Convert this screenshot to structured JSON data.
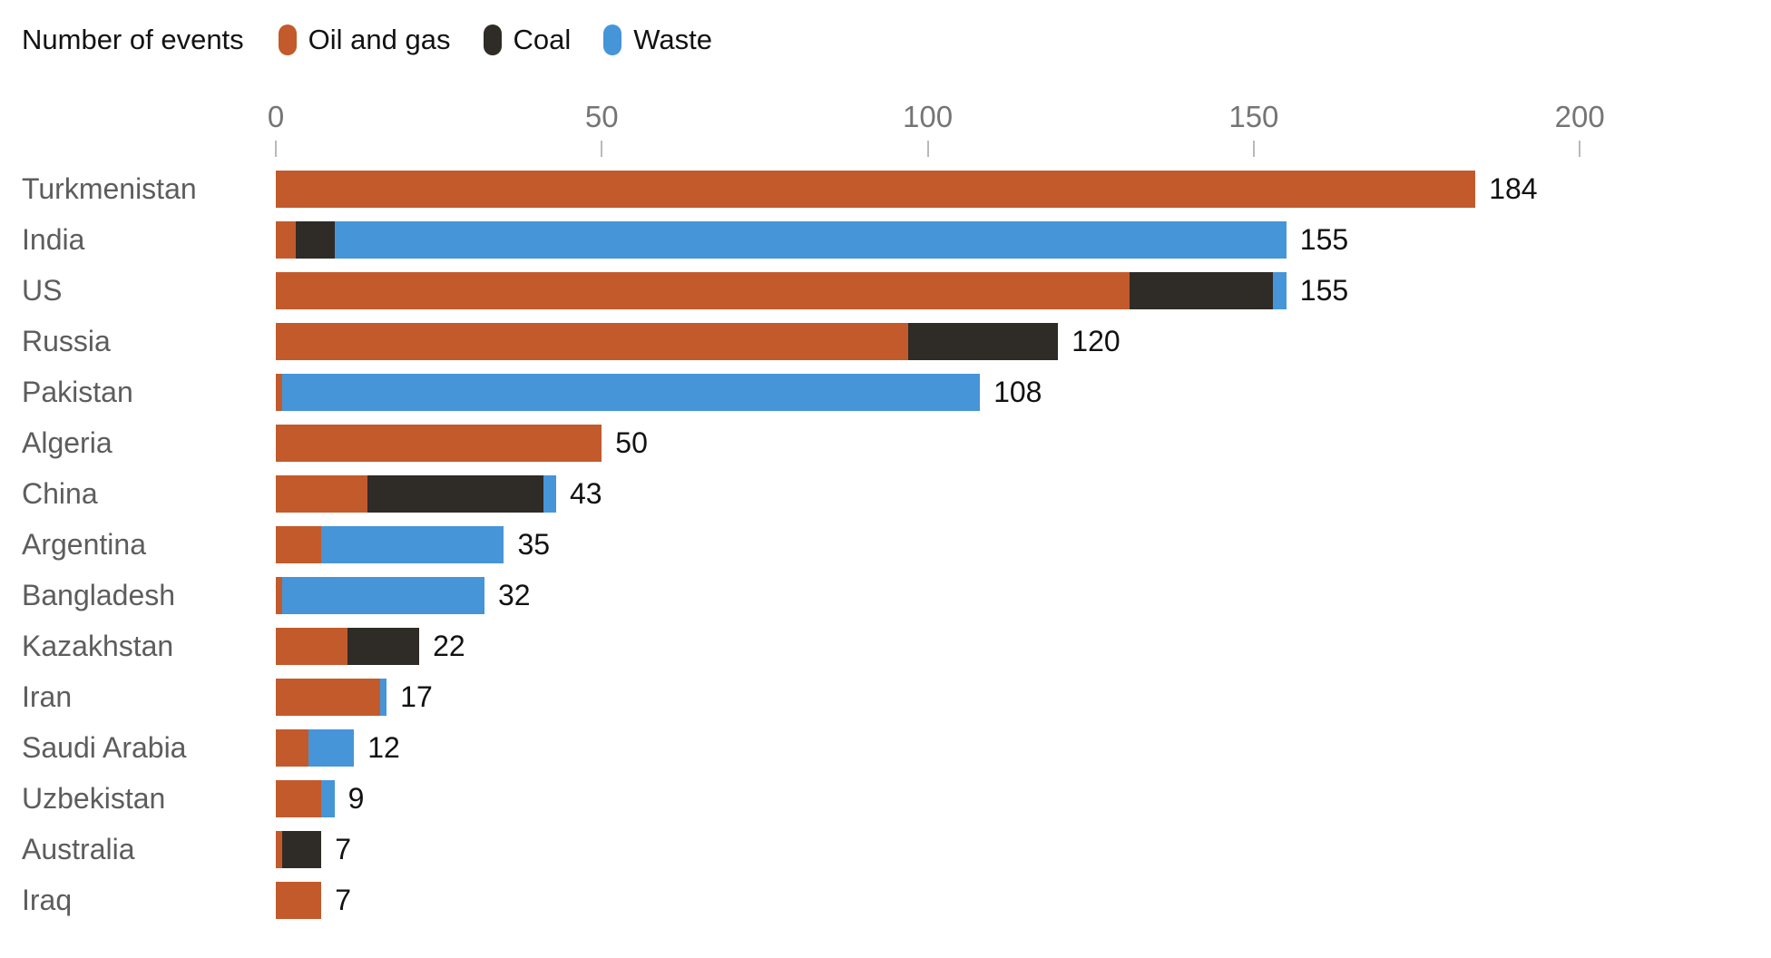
{
  "chart_data": {
    "type": "bar",
    "orientation": "horizontal",
    "stacked": true,
    "title": "Number of events",
    "legend_position": "top",
    "grid": false,
    "xlim": [
      0,
      200
    ],
    "x_tick_values": [
      0,
      50,
      100,
      150,
      200
    ],
    "x_tick_labels": [
      "0",
      "50",
      "100",
      "150",
      "200"
    ],
    "categories": [
      "Turkmenistan",
      "India",
      "US",
      "Russia",
      "Pakistan",
      "Algeria",
      "China",
      "Argentina",
      "Bangladesh",
      "Kazakhstan",
      "Iran",
      "Saudi Arabia",
      "Uzbekistan",
      "Australia",
      "Iraq"
    ],
    "series": [
      {
        "name": "Oil and gas",
        "color": "#c35a2c",
        "values": [
          184,
          3,
          131,
          97,
          1,
          50,
          14,
          7,
          1,
          11,
          16,
          5,
          7,
          1,
          7
        ]
      },
      {
        "name": "Coal",
        "color": "#2f2b27",
        "values": [
          0,
          6,
          22,
          23,
          0,
          0,
          27,
          0,
          0,
          11,
          0,
          0,
          0,
          6,
          0
        ]
      },
      {
        "name": "Waste",
        "color": "#4695d8",
        "values": [
          0,
          146,
          2,
          0,
          107,
          0,
          2,
          28,
          31,
          0,
          1,
          7,
          2,
          0,
          0
        ]
      }
    ],
    "totals": [
      184,
      155,
      155,
      120,
      108,
      50,
      43,
      35,
      32,
      22,
      17,
      12,
      9,
      7,
      7
    ]
  },
  "colors": {
    "background": "#ffffff",
    "title_text": "#121212",
    "axis_tick_text": "#757575",
    "tick_mark": "#b9b9b9",
    "category_text": "#5d5d5d",
    "total_text": "#121212",
    "oil_and_gas": "#c35a2c",
    "coal": "#2f2b27",
    "waste": "#4695d8"
  }
}
